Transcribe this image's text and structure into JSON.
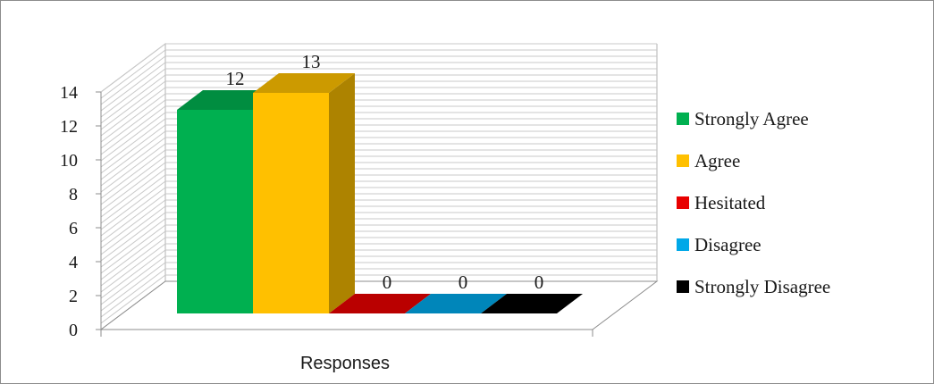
{
  "chart_data": {
    "type": "bar",
    "subtype": "3d-clustered-column",
    "title": "",
    "xlabel": "Responses",
    "ylabel": "",
    "categories": [
      "Responses"
    ],
    "series": [
      {
        "name": "Strongly Agree",
        "values": [
          12
        ],
        "color": "#00b050",
        "label": "12"
      },
      {
        "name": "Agree",
        "values": [
          13
        ],
        "color": "#ffc000",
        "label": "13"
      },
      {
        "name": "Hesitated",
        "values": [
          0
        ],
        "color": "#e80000",
        "label": "0"
      },
      {
        "name": "Disagree",
        "values": [
          0
        ],
        "color": "#00a8e8",
        "label": "0"
      },
      {
        "name": "Strongly Disagree",
        "values": [
          0
        ],
        "color": "#000000",
        "label": "0"
      }
    ],
    "ylim": [
      0,
      14
    ],
    "yticks": [
      "0",
      "2",
      "4",
      "6",
      "8",
      "10",
      "12",
      "14"
    ],
    "grid": true,
    "legend_position": "right"
  }
}
